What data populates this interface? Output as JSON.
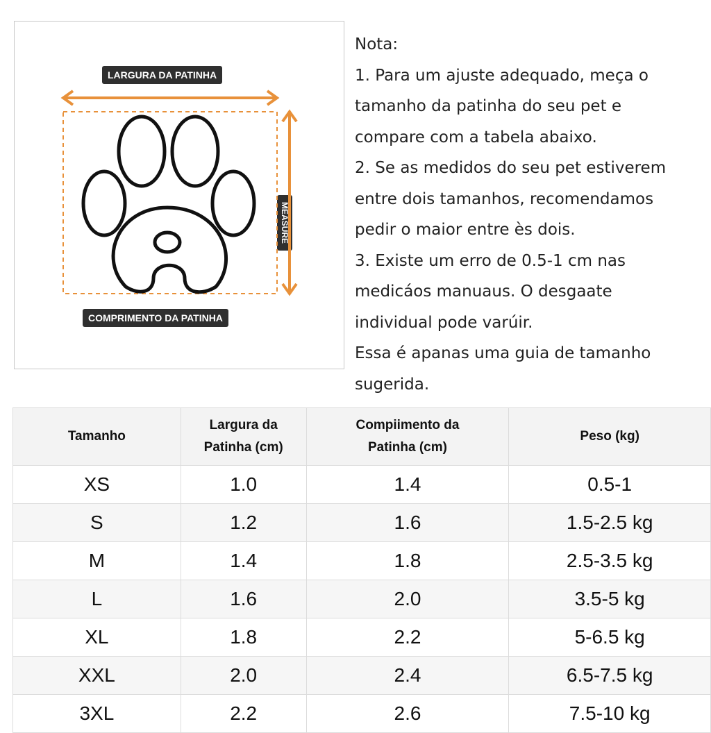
{
  "diagram": {
    "width_label": "LARGURA DA PATINHA",
    "length_label": "COMPRIMENTO DA PATINHA",
    "vertical_tag": "MEASURE",
    "accent_color": "#e8913a"
  },
  "note": {
    "lines": [
      "Nota:",
      "1. Para um ajuste adequado, meça o",
      "tamanho da patinha do seu pet e",
      "compare com a tabela abaixo.",
      "2. Se as medidos do seu pet estiverem",
      "entre dois tamanhos, recomendamos",
      "pedir o maior entre ès dois.",
      "3. Existe um erro de 0.5-1 cm nas",
      "medicáos manuaus. O desgaate",
      "individual pode varúir.",
      "Essa é apanas uma guia de tamanho",
      "sugerida."
    ]
  },
  "table": {
    "headers": [
      "Tamanho",
      "Largura da\nPatinha (cm)",
      "Compiimento da\nPatinha (cm)",
      "Peso (kg)"
    ],
    "rows": [
      [
        "XS",
        "1.0",
        "1.4",
        "0.5-1"
      ],
      [
        "S",
        "1.2",
        "1.6",
        "1.5-2.5 kg"
      ],
      [
        "M",
        "1.4",
        "1.8",
        "2.5-3.5 kg"
      ],
      [
        "L",
        "1.6",
        "2.0",
        "3.5-5 kg"
      ],
      [
        "XL",
        "1.8",
        "2.2",
        "5-6.5 kg"
      ],
      [
        "XXL",
        "2.0",
        "2.4",
        "6.5-7.5  kg"
      ],
      [
        "3XL",
        "2.2",
        "2.6",
        "7.5-10  kg"
      ]
    ]
  }
}
